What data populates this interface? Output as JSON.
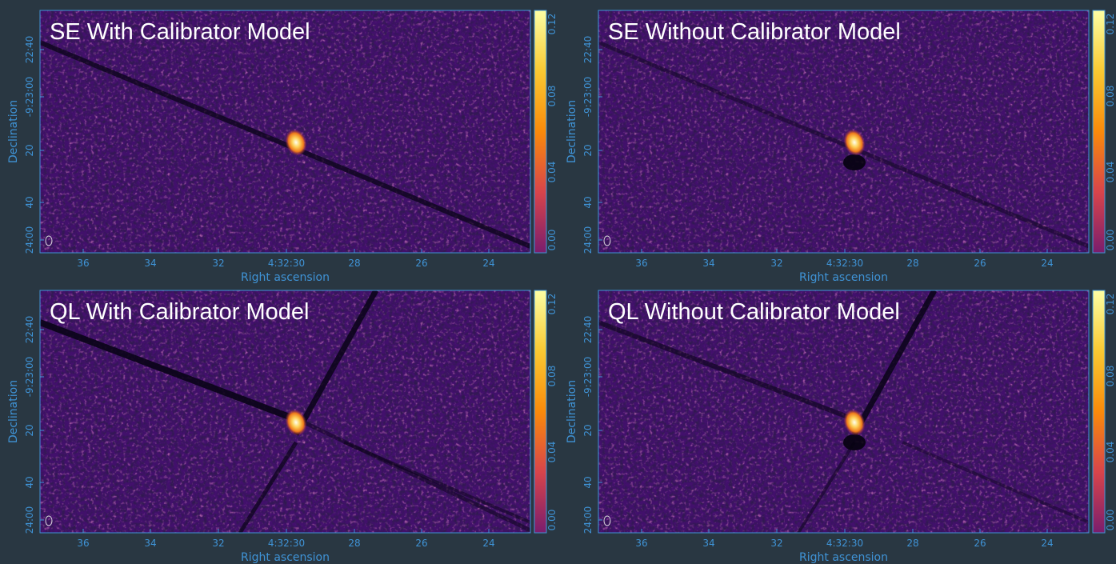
{
  "panels": [
    {
      "title": "SE With Calibrator Model",
      "xlabel": "Right ascension",
      "ylabel": "Declination",
      "xticks": [
        "36",
        "34",
        "32",
        "4:32:30",
        "28",
        "26",
        "24"
      ],
      "yticks": [
        "22:40",
        "-9:23:00",
        "20",
        "40",
        "24:00"
      ],
      "colorbar_ticks": [
        "0.00",
        "0.04",
        "0.08",
        "0.12"
      ]
    },
    {
      "title": "SE Without Calibrator Model",
      "xlabel": "Right ascension",
      "ylabel": "Declination",
      "xticks": [
        "36",
        "34",
        "32",
        "4:32:30",
        "28",
        "26",
        "24"
      ],
      "yticks": [
        "22:40",
        "-9:23:00",
        "20",
        "40",
        "24:00"
      ],
      "colorbar_ticks": [
        "0.00",
        "0.04",
        "0.08",
        "0.12"
      ]
    },
    {
      "title": "QL With Calibrator Model",
      "xlabel": "Right ascension",
      "ylabel": "Declination",
      "xticks": [
        "36",
        "34",
        "32",
        "4:32:30",
        "28",
        "26",
        "24"
      ],
      "yticks": [
        "22:40",
        "-9:23:00",
        "20",
        "40",
        "24:00"
      ],
      "colorbar_ticks": [
        "0.00",
        "0.04",
        "0.08",
        "0.12"
      ]
    },
    {
      "title": "QL Without Calibrator Model",
      "xlabel": "Right ascension",
      "ylabel": "Declination",
      "xticks": [
        "36",
        "34",
        "32",
        "4:32:30",
        "28",
        "26",
        "24"
      ],
      "yticks": [
        "22:40",
        "-9:23:00",
        "20",
        "40",
        "24:00"
      ],
      "colorbar_ticks": [
        "0.00",
        "0.04",
        "0.08",
        "0.12"
      ]
    }
  ]
}
